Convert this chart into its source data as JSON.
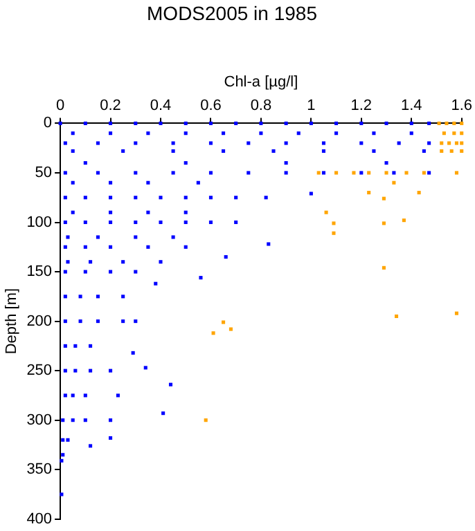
{
  "chart_data": {
    "type": "scatter",
    "title": "MODS2005 in 1985",
    "xlabel": "Chl-a [µg/l]",
    "ylabel": "Depth [m]",
    "xlim": [
      0,
      1.6
    ],
    "xticks": [
      0,
      0.2,
      0.4,
      0.6,
      0.8,
      1,
      1.2,
      1.4,
      1.6
    ],
    "ylim": [
      400,
      0
    ],
    "yticks": [
      0,
      50,
      100,
      150,
      200,
      250,
      300,
      350,
      400
    ],
    "grid": false,
    "legend": false,
    "marker": "square",
    "series": [
      {
        "color": "#0000ff",
        "x": [
          0,
          0.1,
          0.2,
          0.3,
          0.4,
          0.5,
          0.6,
          0.7,
          0.8,
          0.9,
          1,
          1.1,
          1.2,
          1.3,
          1.4,
          1.47,
          0.05,
          0.2,
          0.35,
          0.5,
          0.65,
          0.8,
          0.95,
          1.1,
          1.25,
          1.4,
          0.02,
          0.15,
          0.3,
          0.45,
          0.6,
          0.75,
          0.9,
          1.05,
          1.2,
          1.35,
          1.47,
          0.05,
          0.25,
          0.45,
          0.65,
          0.85,
          1.05,
          1.25,
          1.45,
          0.1,
          0.5,
          0.9,
          1.3,
          0.02,
          0.15,
          0.3,
          0.45,
          0.6,
          0.75,
          0.9,
          1.05,
          1.2,
          1.33,
          1.47,
          0.05,
          0.2,
          0.35,
          0.55,
          0.02,
          0.1,
          0.2,
          0.3,
          0.4,
          0.5,
          0.6,
          0.7,
          0.82,
          0.05,
          0.2,
          0.35,
          0.5,
          0.02,
          0.1,
          0.2,
          0.3,
          0.4,
          0.5,
          0.6,
          0.7,
          0.03,
          0.15,
          0.3,
          0.45,
          0.02,
          0.1,
          0.2,
          0.35,
          0.5,
          0.03,
          0.12,
          0.25,
          0.4,
          0.02,
          0.1,
          0.2,
          0.3,
          0.02,
          0.08,
          0.15,
          0.25,
          0.02,
          0.08,
          0.15,
          0.25,
          0.3,
          0.02,
          0.06,
          0.12,
          0.02,
          0.06,
          0.12,
          0.2,
          0.02,
          0.05,
          0.1,
          0.01,
          0.05,
          0.1,
          0.2,
          0.01,
          0.03,
          0.01,
          0.83,
          1,
          0.66,
          0.38,
          0.56,
          0.44,
          0.41,
          0.34,
          0.29,
          0.23,
          0.2,
          0.12,
          0.005,
          0.005
        ],
        "values": [
          0,
          0,
          0,
          0,
          0,
          0,
          0,
          0,
          0,
          0,
          0,
          0,
          0,
          0,
          0,
          0,
          10,
          10,
          10,
          10,
          10,
          10,
          10,
          10,
          10,
          10,
          20,
          20,
          20,
          20,
          20,
          20,
          20,
          20,
          20,
          20,
          20,
          28,
          28,
          28,
          28,
          28,
          28,
          28,
          28,
          40,
          40,
          40,
          40,
          50,
          50,
          50,
          50,
          50,
          50,
          50,
          50,
          50,
          50,
          50,
          60,
          60,
          60,
          60,
          75,
          75,
          75,
          75,
          75,
          75,
          75,
          75,
          75,
          90,
          90,
          90,
          90,
          100,
          100,
          100,
          100,
          100,
          100,
          100,
          100,
          115,
          115,
          115,
          115,
          125,
          125,
          125,
          125,
          125,
          140,
          140,
          140,
          140,
          150,
          150,
          150,
          150,
          175,
          175,
          175,
          175,
          200,
          200,
          200,
          200,
          200,
          225,
          225,
          225,
          250,
          250,
          250,
          250,
          275,
          275,
          275,
          300,
          300,
          300,
          300,
          320,
          320,
          335,
          122,
          71,
          135,
          162,
          156,
          264,
          293,
          247,
          232,
          275,
          318,
          326,
          375,
          341
        ]
      },
      {
        "color": "#ffa500",
        "x": [
          1.51,
          1.54,
          1.57,
          1.6,
          1.53,
          1.57,
          1.6,
          1.52,
          1.55,
          1.58,
          1.6,
          1.52,
          1.56,
          1.6,
          1.03,
          1.1,
          1.17,
          1.23,
          1.3,
          1.38,
          1.45,
          1.58,
          1.33,
          1.23,
          1.29,
          1.43,
          1.06,
          1.09,
          1.09,
          1.29,
          1.37,
          1.29,
          1.34,
          1.58,
          0.65,
          0.61,
          0.68,
          0.58
        ],
        "values": [
          0,
          0,
          0,
          0,
          10,
          10,
          10,
          20,
          20,
          20,
          20,
          28,
          28,
          28,
          50,
          50,
          50,
          50,
          50,
          50,
          50,
          50,
          60,
          70,
          76,
          70,
          90,
          101,
          111,
          101,
          98,
          146,
          195,
          192,
          201,
          212,
          208,
          300
        ]
      }
    ]
  }
}
